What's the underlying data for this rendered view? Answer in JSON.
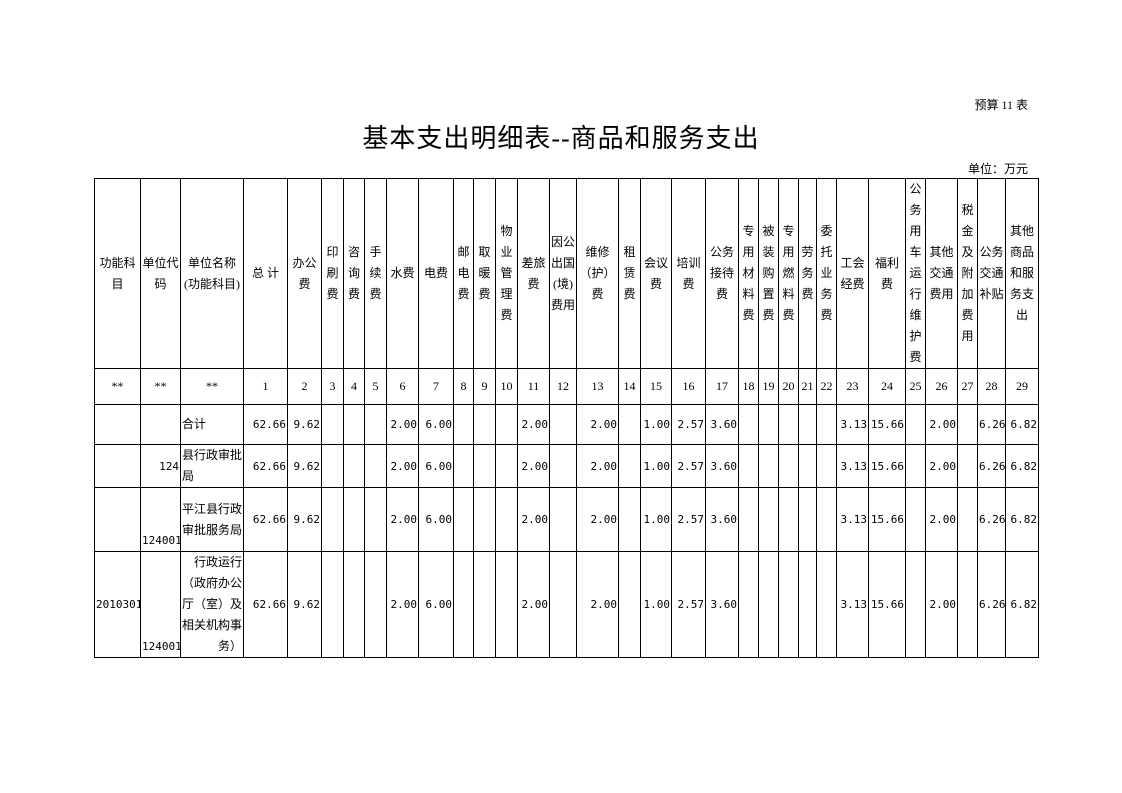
{
  "header": {
    "code": "预算 11 表",
    "title": "基本支出明细表--商品和服务支出",
    "unit": "单位：万元"
  },
  "table": {
    "columns": [
      "功能科目",
      "单位代码",
      "单位名称(功能科目)",
      "总 计",
      "办公费",
      "印刷费",
      "咨询费",
      "手续费",
      "水费",
      "电费",
      "邮电费",
      "取暖费",
      "物业管理费",
      "差旅费",
      "因公出国(境)费用",
      "维修（护）费",
      "租赁费",
      "会议费",
      "培训费",
      "公务接待费",
      "专用材料费",
      "被装购置费",
      "专用燃料费",
      "劳务费",
      "委托业务费",
      "工会经费",
      "福利费",
      "公务用车运行维护费",
      "其他交通费用",
      "税金及附加费用",
      "公务交通补贴",
      "其他商品和服务支出"
    ],
    "index": [
      "**",
      "**",
      "**",
      "1",
      "2",
      "3",
      "4",
      "5",
      "6",
      "7",
      "8",
      "9",
      "10",
      "11",
      "12",
      "13",
      "14",
      "15",
      "16",
      "17",
      "18",
      "19",
      "20",
      "21",
      "22",
      "23",
      "24",
      "25",
      "26",
      "27",
      "28",
      "29"
    ],
    "rows": [
      [
        null,
        null,
        "合计",
        "62.66",
        "9.62",
        null,
        null,
        null,
        "2.00",
        "6.00",
        null,
        null,
        null,
        "2.00",
        null,
        "2.00",
        null,
        "1.00",
        "2.57",
        "3.60",
        null,
        null,
        null,
        null,
        null,
        "3.13",
        "15.66",
        null,
        "2.00",
        null,
        "6.26",
        "6.82"
      ],
      [
        null,
        "124",
        "县行政审批局",
        "62.66",
        "9.62",
        null,
        null,
        null,
        "2.00",
        "6.00",
        null,
        null,
        null,
        "2.00",
        null,
        "2.00",
        null,
        "1.00",
        "2.57",
        "3.60",
        null,
        null,
        null,
        null,
        null,
        "3.13",
        "15.66",
        null,
        "2.00",
        null,
        "6.26",
        "6.82"
      ],
      [
        null,
        "124001",
        "平江县行政审批服务局",
        "62.66",
        "9.62",
        null,
        null,
        null,
        "2.00",
        "6.00",
        null,
        null,
        null,
        "2.00",
        null,
        "2.00",
        null,
        "1.00",
        "2.57",
        "3.60",
        null,
        null,
        null,
        null,
        null,
        "3.13",
        "15.66",
        null,
        "2.00",
        null,
        "6.26",
        "6.82"
      ],
      [
        "2010301",
        "124001",
        "行政运行（政府办公厅（室）及相关机构事务）",
        "62.66",
        "9.62",
        null,
        null,
        null,
        "2.00",
        "6.00",
        null,
        null,
        null,
        "2.00",
        null,
        "2.00",
        null,
        "1.00",
        "2.57",
        "3.60",
        null,
        null,
        null,
        null,
        null,
        "3.13",
        "15.66",
        null,
        "2.00",
        null,
        "6.26",
        "6.82"
      ]
    ]
  }
}
